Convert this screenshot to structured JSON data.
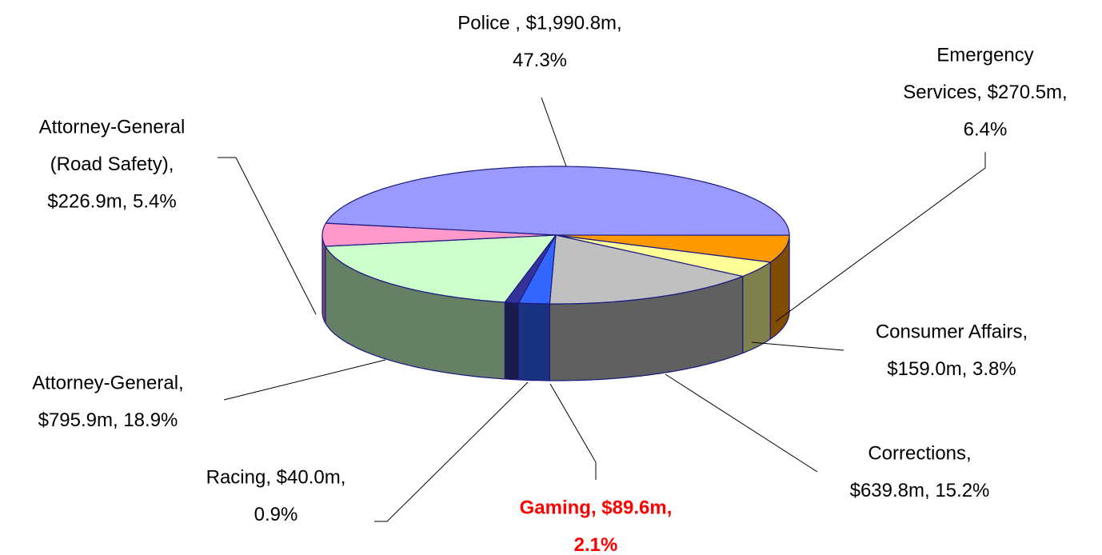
{
  "chart_data": {
    "type": "pie3d",
    "categories": [
      "Police",
      "Emergency Services",
      "Consumer Affairs",
      "Corrections",
      "Gaming",
      "Racing",
      "Attorney-General",
      "Attorney-General (Road Safety)"
    ],
    "values": [
      1990.8,
      270.5,
      159.0,
      639.8,
      89.6,
      40.0,
      795.9,
      226.9
    ],
    "labels": [
      [
        "Police , $1,990.8m,",
        "47.3%"
      ],
      [
        "Emergency",
        "Services, $270.5m,",
        "6.4%"
      ],
      [
        "Consumer Affairs,",
        "$159.0m, 3.8%"
      ],
      [
        "Corrections,",
        "$639.8m, 15.2%"
      ],
      [
        "Gaming, $89.6m,",
        "2.1%"
      ],
      [
        "Racing, $40.0m,",
        "0.9%"
      ],
      [
        "Attorney-General,",
        "$795.9m, 18.9%"
      ],
      [
        "Attorney-General",
        "(Road Safety),",
        "$226.9m, 5.4%"
      ]
    ],
    "colors": [
      "#9999ff",
      "#ff9900",
      "#ffff99",
      "#c0c0c0",
      "#3366ff",
      "#333399",
      "#ccffcc",
      "#ff99cc"
    ],
    "label_colors": [
      "#000000",
      "#000000",
      "#000000",
      "#000000",
      "#ff0000",
      "#000000",
      "#000000",
      "#000000"
    ]
  }
}
